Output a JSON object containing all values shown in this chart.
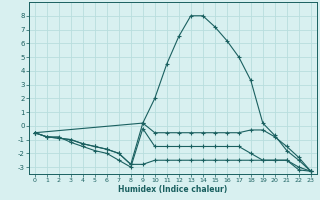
{
  "xlabel": "Humidex (Indice chaleur)",
  "bg_color": "#d8f0f0",
  "grid_color": "#b8dede",
  "line_color": "#1a6060",
  "xlim": [
    -0.5,
    23.5
  ],
  "ylim": [
    -3.5,
    9.0
  ],
  "x_ticks": [
    0,
    1,
    2,
    3,
    4,
    5,
    6,
    7,
    8,
    9,
    10,
    11,
    12,
    13,
    14,
    15,
    16,
    17,
    18,
    19,
    20,
    21,
    22,
    23
  ],
  "y_ticks": [
    -3,
    -2,
    -1,
    0,
    1,
    2,
    3,
    4,
    5,
    6,
    7,
    8
  ],
  "series": [
    {
      "x": [
        0,
        1,
        2,
        3,
        4,
        5,
        6,
        7,
        8,
        9,
        10,
        11,
        12,
        13,
        14,
        15,
        16,
        17,
        18,
        19,
        20,
        21,
        22,
        23
      ],
      "y": [
        -0.5,
        -0.8,
        -0.8,
        -1.2,
        -1.5,
        -1.8,
        -2.0,
        -2.5,
        -3.0,
        -0.2,
        -1.5,
        -1.5,
        -1.5,
        -1.5,
        -1.5,
        -1.5,
        -1.5,
        -1.5,
        -2.0,
        -2.5,
        -2.5,
        -2.5,
        -3.2,
        -3.3
      ]
    },
    {
      "x": [
        0,
        1,
        2,
        3,
        4,
        5,
        6,
        7,
        8,
        9,
        10,
        11,
        12,
        13,
        14,
        15,
        16,
        17,
        18,
        19,
        20,
        21,
        22,
        23
      ],
      "y": [
        -0.5,
        -0.8,
        -0.9,
        -1.0,
        -1.3,
        -1.5,
        -1.7,
        -2.0,
        -2.8,
        0.2,
        -0.5,
        -0.5,
        -0.5,
        -0.5,
        -0.5,
        -0.5,
        -0.5,
        -0.5,
        -0.3,
        -0.3,
        -0.8,
        -1.5,
        -2.3,
        -3.3
      ]
    },
    {
      "x": [
        0,
        9,
        10,
        11,
        12,
        13,
        14,
        15,
        16,
        17,
        18,
        19,
        20,
        21,
        22,
        23
      ],
      "y": [
        -0.5,
        0.2,
        2.0,
        4.5,
        6.5,
        8.0,
        8.0,
        7.2,
        6.2,
        5.0,
        3.3,
        0.2,
        -0.7,
        -1.8,
        -2.5,
        -3.3
      ]
    },
    {
      "x": [
        0,
        1,
        2,
        3,
        4,
        5,
        6,
        7,
        8,
        9,
        10,
        11,
        12,
        13,
        14,
        15,
        16,
        17,
        18,
        19,
        20,
        21,
        22,
        23
      ],
      "y": [
        -0.5,
        -0.8,
        -0.9,
        -1.0,
        -1.3,
        -1.5,
        -1.7,
        -2.0,
        -2.8,
        -2.8,
        -2.5,
        -2.5,
        -2.5,
        -2.5,
        -2.5,
        -2.5,
        -2.5,
        -2.5,
        -2.5,
        -2.5,
        -2.5,
        -2.5,
        -3.0,
        -3.3
      ]
    }
  ]
}
